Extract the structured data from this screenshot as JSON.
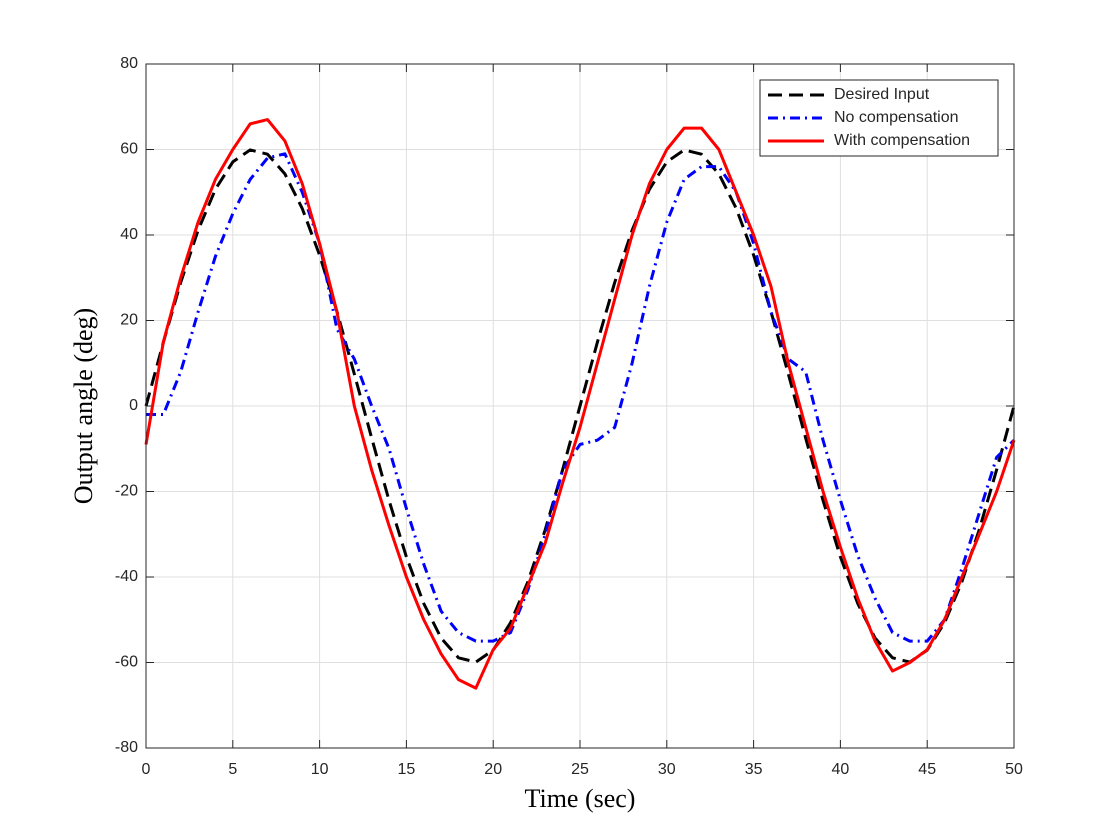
{
  "chart_data": {
    "type": "line",
    "xlabel": "Time (sec)",
    "ylabel": "Output angle (deg)",
    "x": [
      0,
      1,
      2,
      3,
      4,
      5,
      6,
      7,
      8,
      9,
      10,
      11,
      12,
      13,
      14,
      15,
      16,
      17,
      18,
      19,
      20,
      21,
      22,
      23,
      24,
      25,
      26,
      27,
      28,
      29,
      30,
      31,
      32,
      33,
      34,
      35,
      36,
      37,
      38,
      39,
      40,
      41,
      42,
      43,
      44,
      45,
      46,
      47,
      48,
      49,
      50
    ],
    "series": [
      {
        "name": "Desired Input",
        "color": "#000000",
        "linestyle": "dashed",
        "values": [
          0,
          14.9,
          28.9,
          41.1,
          50.7,
          57.1,
          59.9,
          58.9,
          54.3,
          46.2,
          35.3,
          22.1,
          7.5,
          -7.5,
          -22.1,
          -35.3,
          -46.2,
          -54.3,
          -58.9,
          -59.9,
          -57.1,
          -50.7,
          -41.1,
          -28.9,
          -14.9,
          0,
          14.9,
          28.9,
          41.1,
          50.7,
          57.1,
          59.9,
          58.9,
          54.3,
          46.2,
          35.3,
          22.1,
          7.5,
          -7.5,
          -22.1,
          -35.3,
          -46.2,
          -54.3,
          -58.9,
          -59.9,
          -57.1,
          -50.7,
          -41.1,
          -28.9,
          -14.9,
          0
        ]
      },
      {
        "name": "No compensation",
        "color": "#0000ff",
        "linestyle": "dashdot",
        "values": [
          -2,
          -2,
          8,
          22,
          35,
          45,
          53,
          58,
          59,
          50,
          38,
          18,
          11,
          0,
          -10,
          -24,
          -37,
          -48,
          -53,
          -55,
          -55,
          -53,
          -43,
          -30,
          -15,
          -9,
          -8,
          -5,
          10,
          28,
          43,
          53,
          56,
          56,
          50,
          38,
          22,
          11,
          8,
          -8,
          -22,
          -35,
          -45,
          -53,
          -55,
          -55,
          -50,
          -38,
          -25,
          -12,
          -8
        ]
      },
      {
        "name": "With compensation",
        "color": "#ff0000",
        "linestyle": "solid",
        "values": [
          -9,
          15,
          30,
          43,
          53,
          60,
          66,
          67,
          62,
          52,
          38,
          22,
          0,
          -15,
          -28,
          -40,
          -50,
          -58,
          -64,
          -66,
          -57,
          -52,
          -42,
          -32,
          -18,
          -5,
          10,
          25,
          40,
          52,
          60,
          65,
          65,
          60,
          50,
          40,
          28,
          10,
          -5,
          -20,
          -33,
          -45,
          -55,
          -62,
          -60,
          -57,
          -50,
          -40,
          -30,
          -20,
          -8
        ]
      }
    ],
    "xlim": [
      0,
      50
    ],
    "xticks": [
      0,
      5,
      10,
      15,
      20,
      25,
      30,
      35,
      40,
      45,
      50
    ],
    "ylim": [
      -80,
      80
    ],
    "yticks": [
      -80,
      -60,
      -40,
      -20,
      0,
      20,
      40,
      60,
      80
    ],
    "grid": true,
    "legend": "upper right"
  }
}
